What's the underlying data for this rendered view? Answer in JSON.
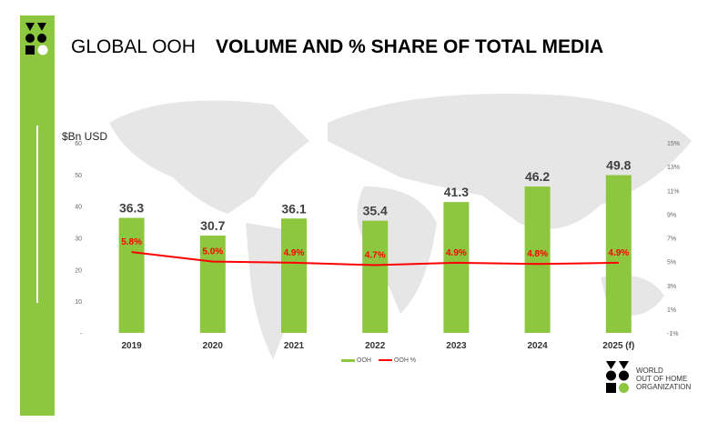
{
  "title": {
    "prefix": "GLOBAL OOH",
    "main": "VOLUME AND  % SHARE OF TOTAL MEDIA"
  },
  "org": {
    "line1": "WORLD",
    "line2": "OUT OF HOME",
    "line3": "ORGANIZATION"
  },
  "colors": {
    "bar": "#8dc63f",
    "line": "#ff0000",
    "label_pct": "#ff0000"
  },
  "chart_data": {
    "type": "bar",
    "categories": [
      "2019",
      "2020",
      "2021",
      "2022",
      "2023",
      "2024",
      "2025 (f)"
    ],
    "series": [
      {
        "name": "OOH",
        "type": "bar",
        "axis": "left",
        "values": [
          36.3,
          30.7,
          36.1,
          35.4,
          41.3,
          46.2,
          49.8
        ],
        "labels": [
          "36.3",
          "30.7",
          "36.1",
          "35.4",
          "41.3",
          "46.2",
          "49.8"
        ]
      },
      {
        "name": "OOH %",
        "type": "line",
        "axis": "right",
        "values": [
          5.8,
          5.0,
          4.9,
          4.7,
          4.9,
          4.8,
          4.9
        ],
        "labels": [
          "5.8%",
          "5.0%",
          "4.9%",
          "4.7%",
          "4.9%",
          "4.8%",
          "4.9%"
        ]
      }
    ],
    "ylabel": "$Bn USD",
    "ylim": [
      0,
      60
    ],
    "yticks": [
      "-",
      "10",
      "20",
      "30",
      "40",
      "50",
      "60"
    ],
    "y2lim": [
      -1,
      15
    ],
    "y2ticks": [
      "-1%",
      "1%",
      "3%",
      "5%",
      "7%",
      "9%",
      "11%",
      "13%",
      "15%"
    ],
    "legend": "bottom"
  }
}
